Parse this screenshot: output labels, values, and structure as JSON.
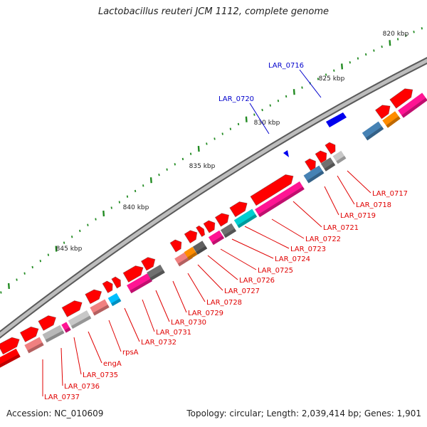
{
  "title": "Lactobacillus reuteri JCM 1112, complete genome",
  "footer": {
    "accession": "Accession: NC_010609",
    "summary": "Topology: circular; Length: 2,039,414 bp; Genes: 1,901"
  },
  "colors": {
    "backbone": "#9a9a9a",
    "gene_red": "#ff0000",
    "ruler_tick": "#228b22",
    "red_label": "#e00000",
    "blue_label": "#0000cc"
  },
  "ruler_labels": [
    "820 kbp",
    "825 kbp",
    "830 kbp",
    "835 kbp",
    "840 kbp",
    "845 kbp"
  ],
  "blue_labels": [
    "LAR_0716",
    "LAR_0720"
  ],
  "red_labels": [
    "LAR_0717",
    "LAR_0718",
    "LAR_0719",
    "LAR_0721",
    "LAR_0722",
    "LAR_0723",
    "LAR_0724",
    "LAR_0725",
    "LAR_0726",
    "LAR_0727",
    "LAR_0728",
    "LAR_0729",
    "LAR_0730",
    "LAR_0731",
    "LAR_0732",
    "rpsA",
    "engA",
    "LAR_0735",
    "LAR_0736",
    "LAR_0737"
  ]
}
